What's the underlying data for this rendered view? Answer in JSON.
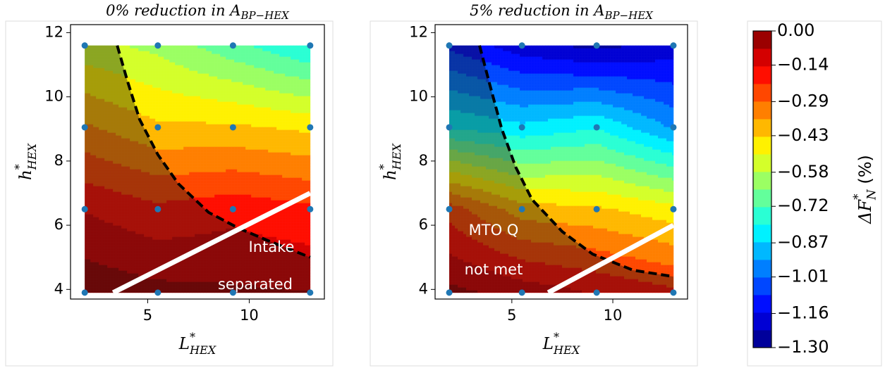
{
  "chart_data": [
    {
      "type": "contour",
      "title": {
        "text": "0% reduction in A",
        "sub": "BP−HEX"
      },
      "xlabel": {
        "main": "L",
        "sup": "*",
        "sub": "HEX"
      },
      "ylabel": {
        "main": "h",
        "sup": "*",
        "sub": "HEX"
      },
      "xlim": [
        1.2,
        13.7
      ],
      "ylim": [
        3.7,
        12.25
      ],
      "xticks": [
        5,
        10
      ],
      "yticks": [
        4,
        6,
        8,
        10,
        12
      ],
      "field": {
        "x": [
          1.9,
          5.5,
          9.2,
          13
        ],
        "y": [
          3.9,
          6.5,
          9.05,
          11.6
        ],
        "z": [
          [
            -0.02,
            -0.05,
            -0.06,
            -0.07
          ],
          [
            -0.15,
            -0.2,
            -0.17,
            -0.2
          ],
          [
            -0.35,
            -0.42,
            -0.42,
            -0.45
          ],
          [
            -0.55,
            -0.6,
            -0.7,
            -0.8
          ]
        ]
      },
      "point_color": "#1f77b4",
      "boundary": {
        "x": [
          3.5,
          4,
          4.6,
          5.5,
          6.5,
          8,
          9.5,
          11,
          13
        ],
        "y": [
          11.6,
          10.5,
          9.3,
          8.2,
          7.3,
          6.4,
          5.9,
          5.5,
          5.0
        ]
      },
      "limit_line": {
        "x": [
          3.3,
          13
        ],
        "y": [
          3.9,
          7.0
        ]
      },
      "annotations": [
        "Intake",
        "separated"
      ]
    },
    {
      "type": "contour",
      "title": {
        "text": "5% reduction in A",
        "sub": "BP−HEX"
      },
      "xlabel": {
        "main": "L",
        "sup": "*",
        "sub": "HEX"
      },
      "ylabel": {
        "main": "h",
        "sup": "*",
        "sub": "HEX"
      },
      "xlim": [
        1.2,
        13.7
      ],
      "ylim": [
        3.7,
        12.25
      ],
      "xticks": [
        5,
        10
      ],
      "yticks": [
        4,
        6,
        8,
        10,
        12
      ],
      "field": {
        "x": [
          1.9,
          5.5,
          9.2,
          13
        ],
        "y": [
          3.9,
          6.5,
          9.05,
          11.6
        ],
        "z": [
          [
            -0.05,
            -0.1,
            -0.15,
            -0.2
          ],
          [
            -0.25,
            -0.4,
            -0.42,
            -0.48
          ],
          [
            -0.8,
            -0.85,
            -0.8,
            -0.95
          ],
          [
            -1.1,
            -1.2,
            -1.25,
            -1.2
          ]
        ]
      },
      "point_color": "#1f77b4",
      "boundary": {
        "x": [
          3.4,
          3.9,
          4.5,
          5.2,
          6,
          7.5,
          9,
          11,
          13
        ],
        "y": [
          11.6,
          10.4,
          9,
          7.8,
          6.8,
          5.8,
          5.1,
          4.6,
          4.4
        ]
      },
      "limit_line": {
        "x": [
          6.8,
          13
        ],
        "y": [
          3.9,
          6.0
        ]
      },
      "annotations": [
        "MTO Q",
        "not met"
      ]
    },
    {
      "type": "colorbar",
      "label": {
        "main": "ΔF",
        "sup": "*",
        "sub": "N",
        "unit": " (%)"
      },
      "lim": [
        -1.3,
        0
      ],
      "levels": 18,
      "colormap": [
        "#00007f",
        "#0000ff",
        "#007fff",
        "#00ffff",
        "#7fff7f",
        "#ffff00",
        "#ff7f00",
        "#ff0000",
        "#7f0000"
      ],
      "ticks": [
        {
          "value": 0,
          "label": "0.00"
        },
        {
          "value": -0.14,
          "label": "−0.14"
        },
        {
          "value": -0.29,
          "label": "−0.29"
        },
        {
          "value": -0.43,
          "label": "−0.43"
        },
        {
          "value": -0.58,
          "label": "−0.58"
        },
        {
          "value": -0.72,
          "label": "−0.72"
        },
        {
          "value": -0.87,
          "label": "−0.87"
        },
        {
          "value": -1.01,
          "label": "−1.01"
        },
        {
          "value": -1.16,
          "label": "−1.16"
        },
        {
          "value": -1.3,
          "label": "−1.30"
        }
      ]
    }
  ]
}
